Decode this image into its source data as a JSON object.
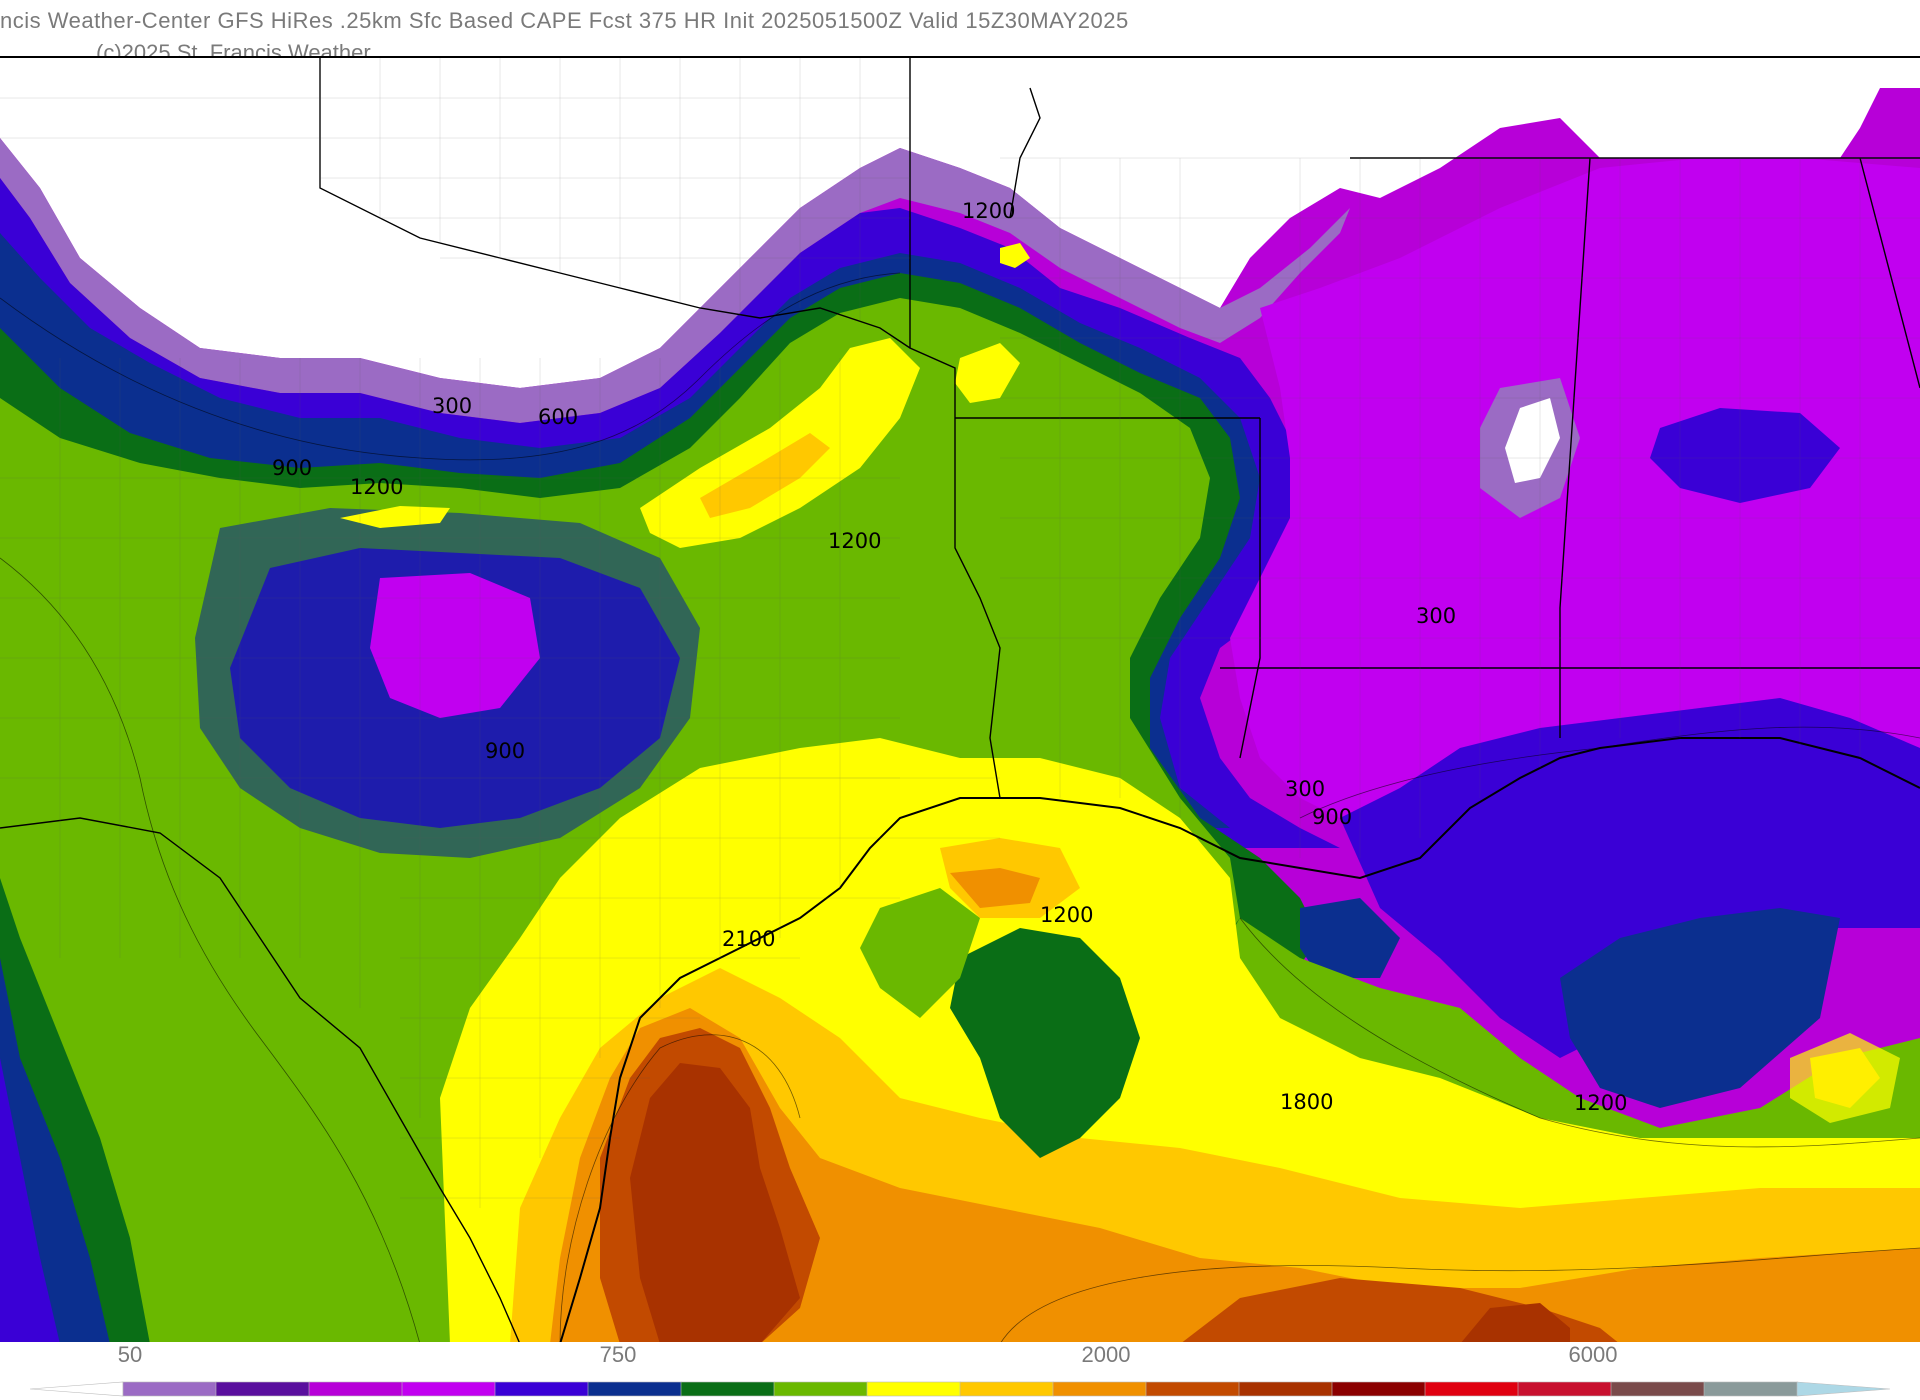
{
  "header": {
    "title": "ncis Weather-Center GFS HiRes .25km Sfc Based CAPE  Fcst 375 HR Init 2025051500Z  Valid 15Z30MAY2025",
    "credit": "(c)2025 St. Francis Weather"
  },
  "map": {
    "field": "Surface Based CAPE",
    "units_shown": "none",
    "fill_colors": {
      "white": "#ffffff",
      "light_purple": "#9b6bc4",
      "dark_purple": "#5a0f9e",
      "magenta": "#b700d8",
      "violet": "#c100f0",
      "blue_violet": "#3a00d6",
      "navy": "#0b2f8f",
      "dark_green": "#0a6e16",
      "green": "#6ab800",
      "yellow": "#ffff00",
      "gold": "#ffc800",
      "orange": "#f09000",
      "rust": "#c24a00",
      "brown": "#a83200"
    },
    "contour_labels": [
      {
        "id": "lbl-1200-north",
        "text": "1200"
      },
      {
        "id": "lbl-300-west",
        "text": "300"
      },
      {
        "id": "lbl-600",
        "text": "600"
      },
      {
        "id": "lbl-900-west",
        "text": "900"
      },
      {
        "id": "lbl-1200-west",
        "text": "1200"
      },
      {
        "id": "lbl-1200-central",
        "text": "1200"
      },
      {
        "id": "lbl-900-south",
        "text": "900"
      },
      {
        "id": "lbl-300-east",
        "text": "300"
      },
      {
        "id": "lbl-300-coast",
        "text": "300"
      },
      {
        "id": "lbl-900-coast",
        "text": "900"
      },
      {
        "id": "lbl-1200-gulf",
        "text": "1200"
      },
      {
        "id": "lbl-2100",
        "text": "2100"
      },
      {
        "id": "lbl-1800",
        "text": "1800"
      },
      {
        "id": "lbl-1200-east",
        "text": "1200"
      }
    ]
  },
  "colorbar": {
    "tick_labels": [
      "50",
      "750",
      "2000",
      "6000"
    ],
    "colors": [
      "#ffffff",
      "#9b6bc4",
      "#5a0f9e",
      "#b700d8",
      "#c100f0",
      "#3a00d6",
      "#0b2f8f",
      "#0a6e16",
      "#6ab800",
      "#ffff00",
      "#ffc800",
      "#f09000",
      "#c24a00",
      "#a83200",
      "#8b0000",
      "#e00010",
      "#c8102e",
      "#7a4b4b",
      "#8a9a9a",
      "#add8e6"
    ]
  }
}
